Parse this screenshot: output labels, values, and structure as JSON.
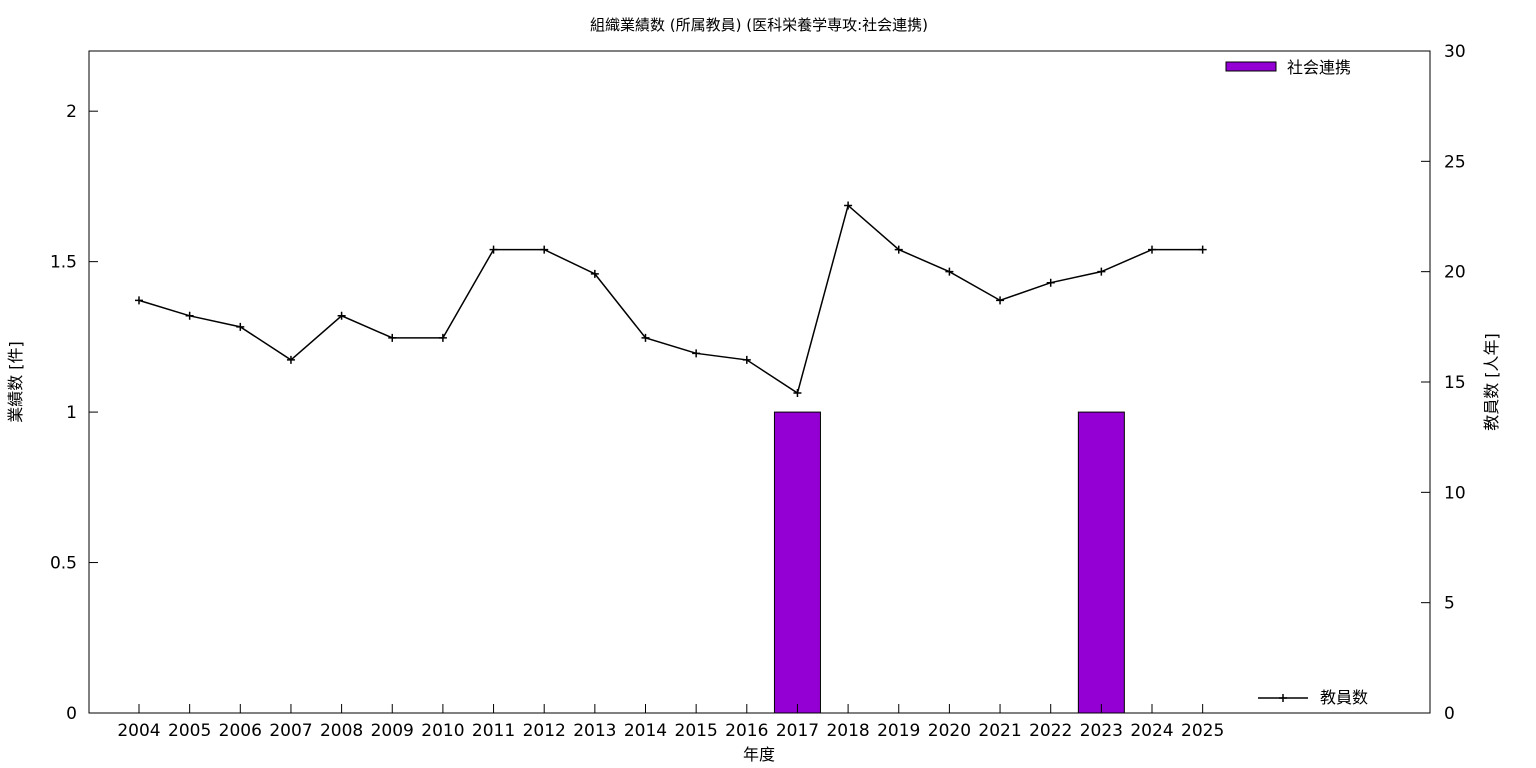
{
  "chart_data": {
    "type": "bar",
    "title": "組織業績数 (所属教員) (医科栄養学専攻:社会連携)",
    "xlabel": "年度",
    "ylabel": "業績数 [件]",
    "y2label": "教員数 [人年]",
    "categories": [
      "2004",
      "2005",
      "2006",
      "2007",
      "2008",
      "2009",
      "2010",
      "2011",
      "2012",
      "2013",
      "2014",
      "2015",
      "2016",
      "2017",
      "2018",
      "2019",
      "2020",
      "2021",
      "2022",
      "2023",
      "2024",
      "2025"
    ],
    "ylim": [
      0,
      2.2
    ],
    "y2lim": [
      0,
      30
    ],
    "yticks": [
      "0",
      "0.5",
      "1",
      "1.5",
      "2"
    ],
    "y2ticks": [
      "0",
      "5",
      "10",
      "15",
      "20",
      "25",
      "30"
    ],
    "series": [
      {
        "name": "社会連携",
        "type": "bar",
        "axis": "left",
        "color": "#9400d3",
        "values": [
          0,
          0,
          0,
          0,
          0,
          0,
          0,
          0,
          0,
          0,
          0,
          0,
          0,
          1,
          0,
          0,
          0,
          0,
          0,
          1,
          0,
          0
        ]
      },
      {
        "name": "教員数",
        "type": "line",
        "axis": "right",
        "color": "#000000",
        "values": [
          18.7,
          18.0,
          17.5,
          16.0,
          18.0,
          17.0,
          17.0,
          21.0,
          21.0,
          19.9,
          17.0,
          16.3,
          16.0,
          14.5,
          23.0,
          21.0,
          20.0,
          18.7,
          19.5,
          20.0,
          21.0,
          21.0
        ]
      }
    ],
    "legend": [
      "top-right",
      "bottom-right"
    ],
    "grid": false
  }
}
